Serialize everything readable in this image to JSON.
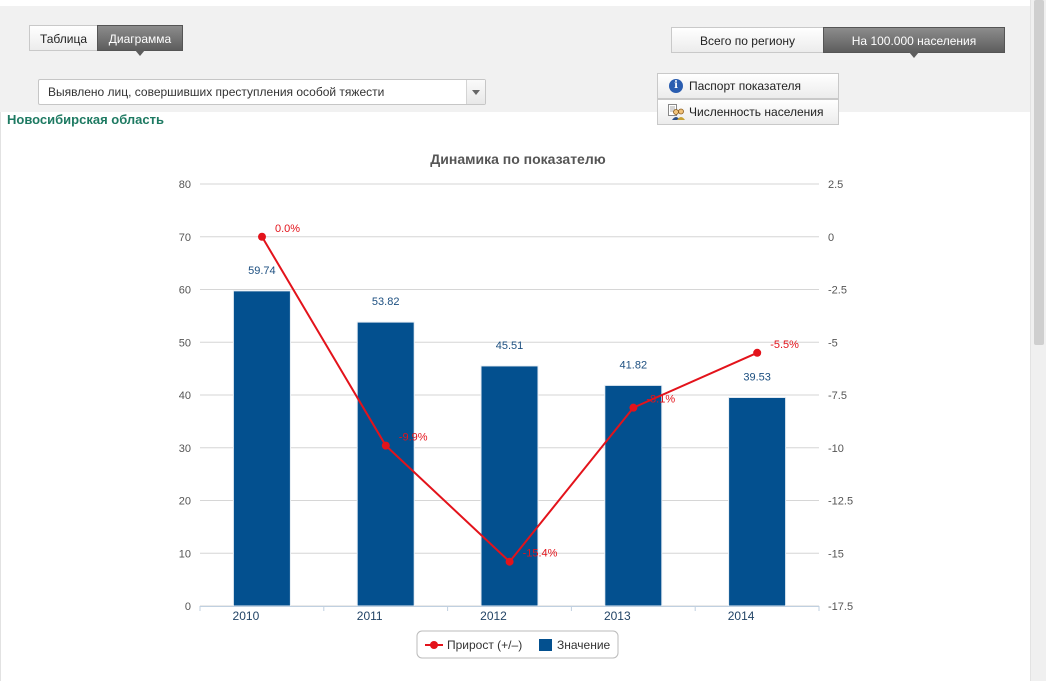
{
  "tabs": {
    "table_label": "Таблица",
    "chart_label": "Диаграмма"
  },
  "mode": {
    "total_label": "Всего по региону",
    "per100k_label": "На 100.000 населения"
  },
  "indicator_select": {
    "value": "Выявлено лиц, совершивших преступления особой тяжести"
  },
  "buttons": {
    "passport_label": "Паспорт показателя",
    "population_label": "Численность населения"
  },
  "region": "Новосибирская область",
  "colors": {
    "bar": "#03508f",
    "line": "#e3131b",
    "region_text": "#1e7a62"
  },
  "icons": {
    "passport": "info-icon",
    "population": "people-icon"
  },
  "chart_data": {
    "type": "bar",
    "title": "Динамика по показателю",
    "categories": [
      "2010",
      "2011",
      "2012",
      "2013",
      "2014"
    ],
    "series": [
      {
        "name": "Значение",
        "type": "bar",
        "axis": "left",
        "color": "#03508f",
        "values": [
          59.74,
          53.82,
          45.51,
          41.82,
          39.53
        ],
        "labels": [
          "59.74",
          "53.82",
          "45.51",
          "41.82",
          "39.53"
        ]
      },
      {
        "name": "Прирост (+/–)",
        "type": "line",
        "axis": "right",
        "color": "#e3131b",
        "values": [
          0.0,
          -9.9,
          -15.4,
          -8.1,
          -5.5
        ],
        "labels": [
          "0.0%",
          "-9.9%",
          "-15.4%",
          "-8.1%",
          "-5.5%"
        ]
      }
    ],
    "y_left": {
      "min": 0,
      "max": 80,
      "ticks": [
        "0",
        "10",
        "20",
        "30",
        "40",
        "50",
        "60",
        "70",
        "80"
      ]
    },
    "y_right": {
      "min": -17.5,
      "max": 2.5,
      "ticks": [
        "-17.5",
        "-15",
        "-12.5",
        "-10",
        "-7.5",
        "-5",
        "-2.5",
        "0",
        "2.5"
      ]
    },
    "grid": true,
    "legend": {
      "position": "bottom-center",
      "items": [
        "Прирост (+/–)",
        "Значение"
      ]
    }
  }
}
